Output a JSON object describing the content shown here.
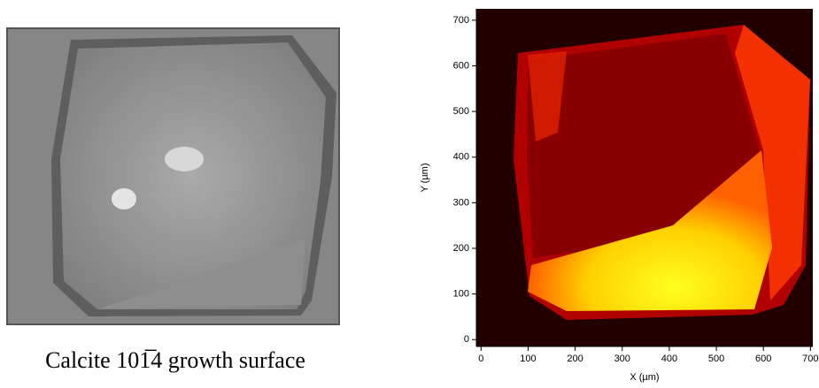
{
  "caption": "Calcite 101̅4 growth surface",
  "chart_data": {
    "type": "heatmap",
    "xlabel": "X (µm)",
    "ylabel": "Y (µm)",
    "xlim": [
      -10,
      705
    ],
    "ylim": [
      -15,
      725
    ],
    "xticks": [
      0,
      100,
      200,
      300,
      400,
      500,
      600,
      700
    ],
    "yticks": [
      0,
      100,
      200,
      300,
      400,
      500,
      600,
      700
    ]
  }
}
